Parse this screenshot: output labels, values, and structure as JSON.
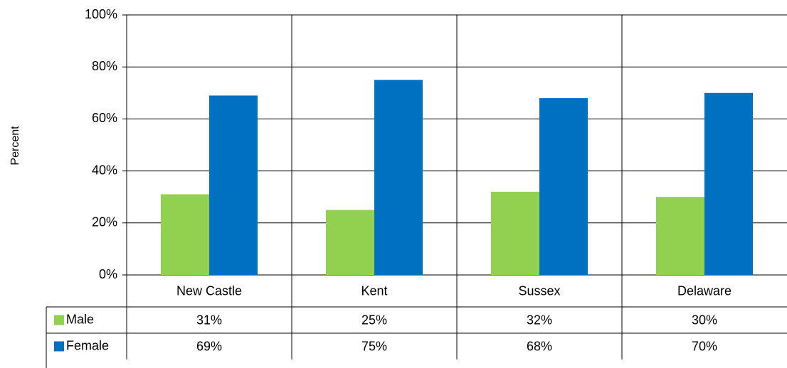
{
  "chart_data": {
    "type": "bar",
    "y_label": "Percent",
    "categories": [
      "New Castle",
      "Kent",
      "Sussex",
      "Delaware"
    ],
    "series": [
      {
        "name": "Male",
        "color": "#92d050",
        "values": [
          31,
          25,
          32,
          30
        ],
        "value_labels": [
          "31%",
          "25%",
          "32%",
          "30%"
        ]
      },
      {
        "name": "Female",
        "color": "#0070c0",
        "values": [
          69,
          75,
          68,
          70
        ],
        "value_labels": [
          "69%",
          "75%",
          "68%",
          "70%"
        ]
      }
    ],
    "ylim": [
      0,
      100
    ],
    "yticks": [
      {
        "value": 0,
        "label": "0%"
      },
      {
        "value": 20,
        "label": "20%"
      },
      {
        "value": 40,
        "label": "40%"
      },
      {
        "value": 60,
        "label": "60%"
      },
      {
        "value": 80,
        "label": "80%"
      },
      {
        "value": 100,
        "label": "100%"
      }
    ],
    "grid": true,
    "data_table": true
  }
}
